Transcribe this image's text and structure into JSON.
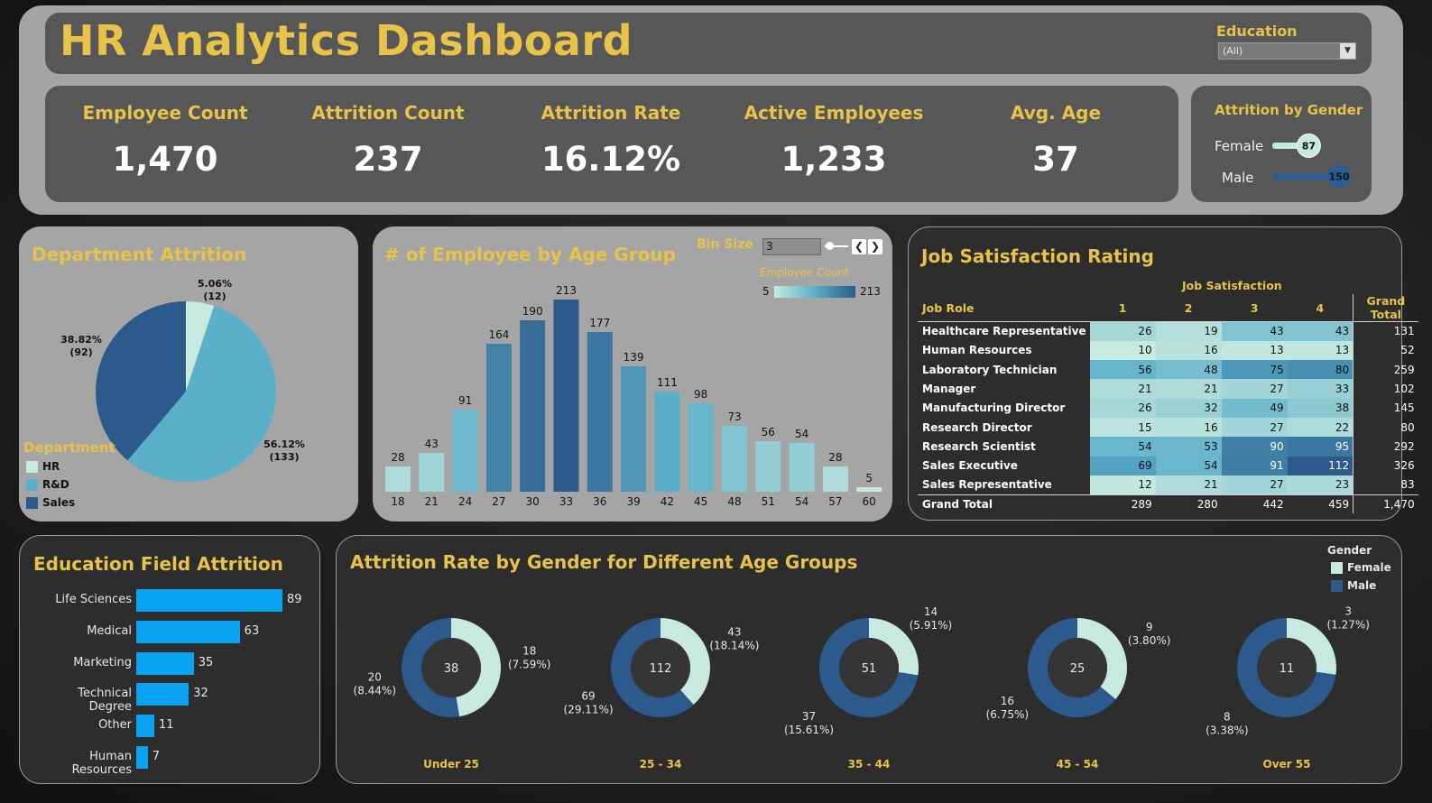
{
  "header": {
    "title": "HR Analytics Dashboard",
    "education_filter_label": "Education",
    "education_filter_value": "(All)"
  },
  "kpis": [
    {
      "label": "Employee Count",
      "value": "1,470"
    },
    {
      "label": "Attrition Count",
      "value": "237"
    },
    {
      "label": "Attrition Rate",
      "value": "16.12%"
    },
    {
      "label": "Active Employees",
      "value": "1,233"
    },
    {
      "label": "Avg. Age",
      "value": "37"
    }
  ],
  "attrition_by_gender": {
    "title": "Attrition by Gender",
    "rows": [
      {
        "label": "Female",
        "value": 87,
        "display": "87",
        "color": "#c7e9e0"
      },
      {
        "label": "Male",
        "value": 150,
        "display": "150",
        "color": "#2a5d93"
      }
    ]
  },
  "department_attrition": {
    "title": "Department Attrition",
    "legend_title": "Department",
    "legend": [
      {
        "label": "HR",
        "color": "#c7e9e0"
      },
      {
        "label": "R&D",
        "color": "#5aafc9"
      },
      {
        "label": "Sales",
        "color": "#2c5a8c"
      }
    ],
    "slice_labels": [
      {
        "pct": "5.06%",
        "count": "(12)"
      },
      {
        "pct": "56.12%",
        "count": "(133)"
      },
      {
        "pct": "38.82%",
        "count": "(92)"
      }
    ]
  },
  "age_group": {
    "title": "# of Employee by Age Group",
    "bin_label": "Bin Size",
    "bin_value": "3",
    "legend_title": "Employee Count",
    "legend_min": "5",
    "legend_max": "213"
  },
  "job_satisfaction": {
    "title": "Job Satisfaction Rating",
    "super_header": "Job Satisfaction",
    "role_header": "Job Role",
    "col_headers": [
      "1",
      "2",
      "3",
      "4"
    ],
    "total_header": "Grand Total",
    "rows": [
      {
        "role": "Healthcare Representative",
        "values": [
          "26",
          "19",
          "43",
          "43"
        ],
        "total": "131"
      },
      {
        "role": "Human Resources",
        "values": [
          "10",
          "16",
          "13",
          "13"
        ],
        "total": "52"
      },
      {
        "role": "Laboratory Technician",
        "values": [
          "56",
          "48",
          "75",
          "80"
        ],
        "total": "259"
      },
      {
        "role": "Manager",
        "values": [
          "21",
          "21",
          "27",
          "33"
        ],
        "total": "102"
      },
      {
        "role": "Manufacturing Director",
        "values": [
          "26",
          "32",
          "49",
          "38"
        ],
        "total": "145"
      },
      {
        "role": "Research Director",
        "values": [
          "15",
          "16",
          "27",
          "22"
        ],
        "total": "80"
      },
      {
        "role": "Research Scientist",
        "values": [
          "54",
          "53",
          "90",
          "95"
        ],
        "total": "292"
      },
      {
        "role": "Sales Executive",
        "values": [
          "69",
          "54",
          "91",
          "112"
        ],
        "total": "326"
      },
      {
        "role": "Sales Representative",
        "values": [
          "12",
          "21",
          "27",
          "23"
        ],
        "total": "83"
      }
    ],
    "grand_total": {
      "label": "Grand Total",
      "values": [
        "289",
        "280",
        "442",
        "459"
      ],
      "total": "1,470"
    }
  },
  "education_field": {
    "title": "Education Field Attrition"
  },
  "gender_age": {
    "title": "Attrition Rate by Gender for Different Age Groups",
    "legend_title": "Gender",
    "legend": [
      {
        "label": "Female",
        "color": "#c7e9e0"
      },
      {
        "label": "Male",
        "color": "#2c5a8c"
      }
    ]
  },
  "chart_data": [
    {
      "type": "pie",
      "title": "Department Attrition",
      "categories": [
        "HR",
        "R&D",
        "Sales"
      ],
      "values": [
        12,
        133,
        92
      ],
      "percent": [
        5.06,
        56.12,
        38.82
      ]
    },
    {
      "type": "bar",
      "title": "# of Employee by Age Group",
      "categories": [
        "18",
        "21",
        "24",
        "27",
        "30",
        "33",
        "36",
        "39",
        "42",
        "45",
        "48",
        "51",
        "54",
        "57",
        "60"
      ],
      "values": [
        28,
        43,
        91,
        164,
        190,
        213,
        177,
        139,
        111,
        98,
        73,
        56,
        54,
        28,
        5
      ],
      "ylim": [
        0,
        213
      ]
    },
    {
      "type": "bar",
      "title": "Education Field Attrition",
      "orientation": "horizontal",
      "categories": [
        "Life Sciences",
        "Medical",
        "Marketing",
        "Technical Degree",
        "Other",
        "Human Resources"
      ],
      "values": [
        89,
        63,
        35,
        32,
        11,
        7
      ]
    },
    {
      "type": "pie",
      "title": "Attrition Rate by Gender for Different Age Groups",
      "groups": [
        {
          "label": "Under 25",
          "total": "38",
          "female": 18,
          "female_label": "18",
          "female_pct": "(7.59%)",
          "male": 20,
          "male_label": "20",
          "male_pct": "(8.44%)"
        },
        {
          "label": "25 - 34",
          "total": "112",
          "female": 43,
          "female_label": "43",
          "female_pct": "(18.14%)",
          "male": 69,
          "male_label": "69",
          "male_pct": "(29.11%)"
        },
        {
          "label": "35 - 44",
          "total": "51",
          "female": 14,
          "female_label": "14",
          "female_pct": "(5.91%)",
          "male": 37,
          "male_label": "37",
          "male_pct": "(15.61%)"
        },
        {
          "label": "45 - 54",
          "total": "25",
          "female": 9,
          "female_label": "9",
          "female_pct": "(3.80%)",
          "male": 16,
          "male_label": "16",
          "male_pct": "(6.75%)"
        },
        {
          "label": "Over 55",
          "total": "11",
          "female": 3,
          "female_label": "3",
          "female_pct": "(1.27%)",
          "male": 8,
          "male_label": "8",
          "male_pct": "(3.38%)"
        }
      ]
    }
  ]
}
